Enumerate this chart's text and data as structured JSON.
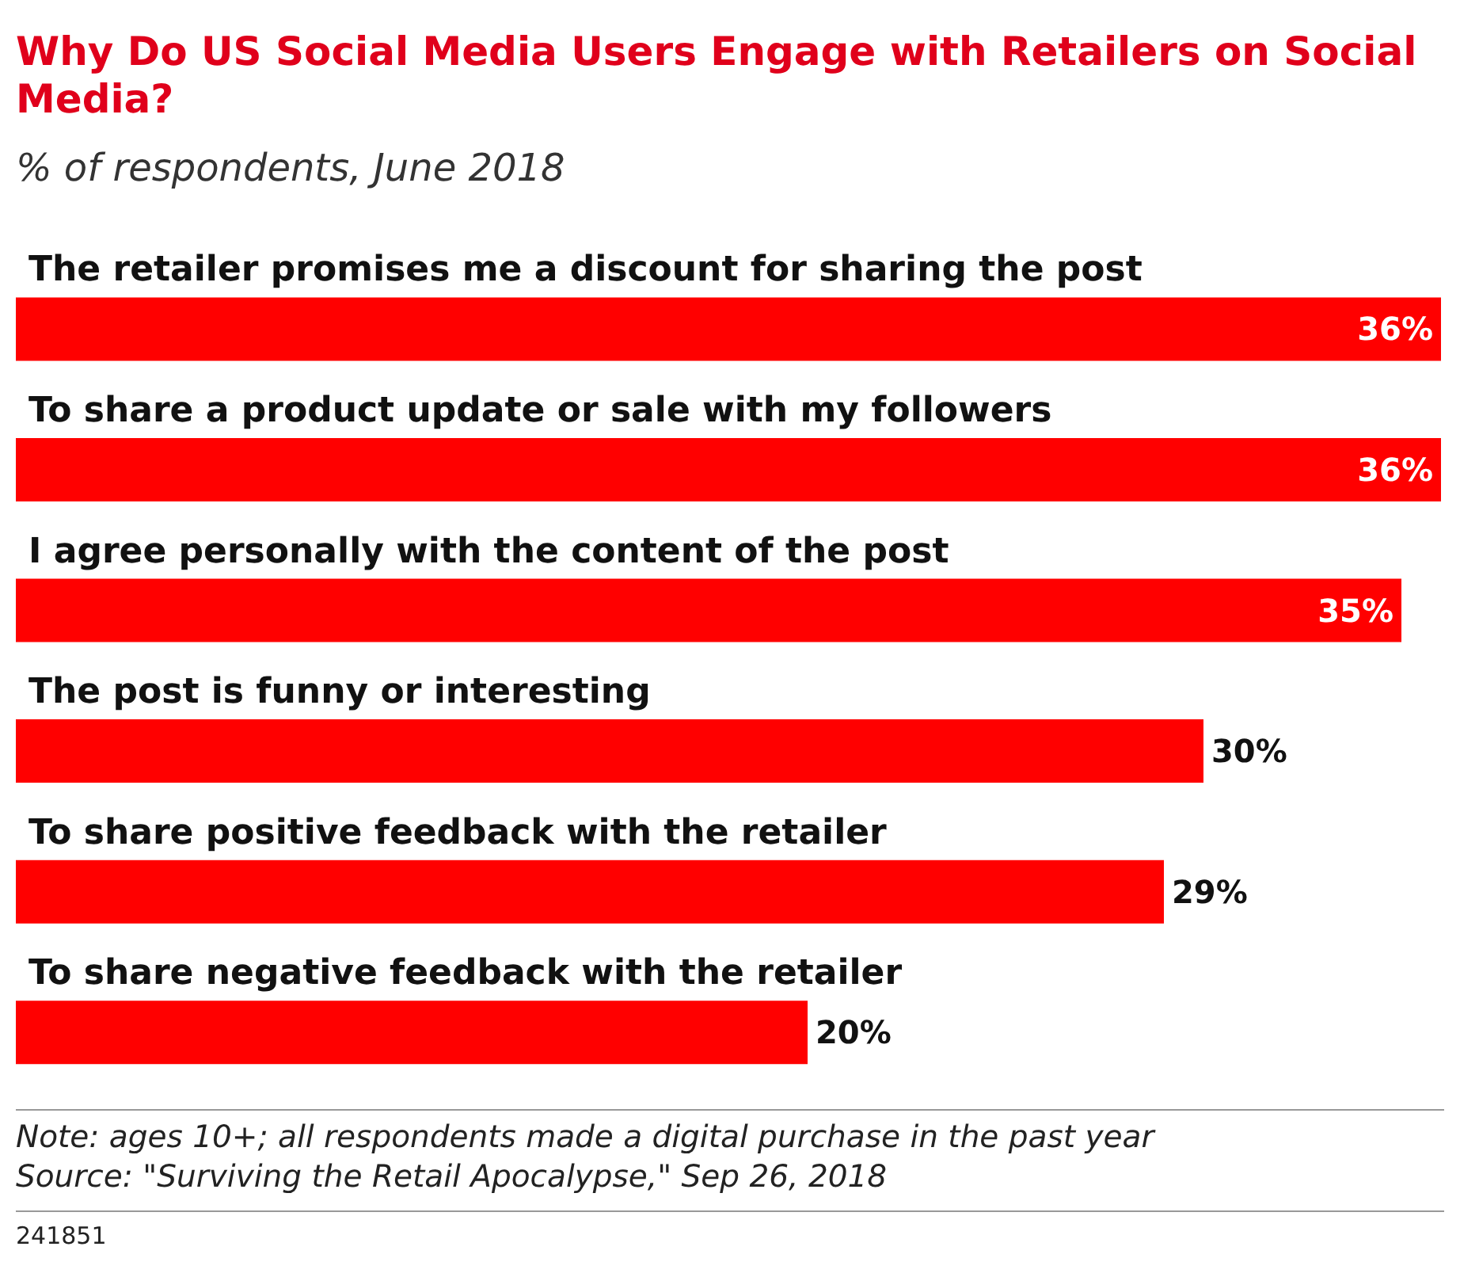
{
  "chart_data": {
    "type": "bar",
    "orientation": "horizontal",
    "title": "Why Do US Social Media Users Engage with Retailers on Social Media?",
    "subtitle": "% of respondents, June 2018",
    "categories": [
      "The retailer promises me a discount for sharing the post",
      "To share a product update or sale with my followers",
      "I agree personally with the content of the post",
      "The post is funny or interesting",
      "To share positive feedback with the retailer",
      "To share negative feedback with the retailer"
    ],
    "values": [
      36,
      36,
      35,
      30,
      29,
      20
    ],
    "value_labels": [
      "36%",
      "36%",
      "35%",
      "30%",
      "29%",
      "20%"
    ],
    "color": "#ff0000",
    "annotations": [
      "Note: ages 10+; all respondents made a digital purchase in the past year",
      "Source: \"Surviving the Retail Apocalypse,\" Sep 26, 2018",
      "241851"
    ]
  }
}
